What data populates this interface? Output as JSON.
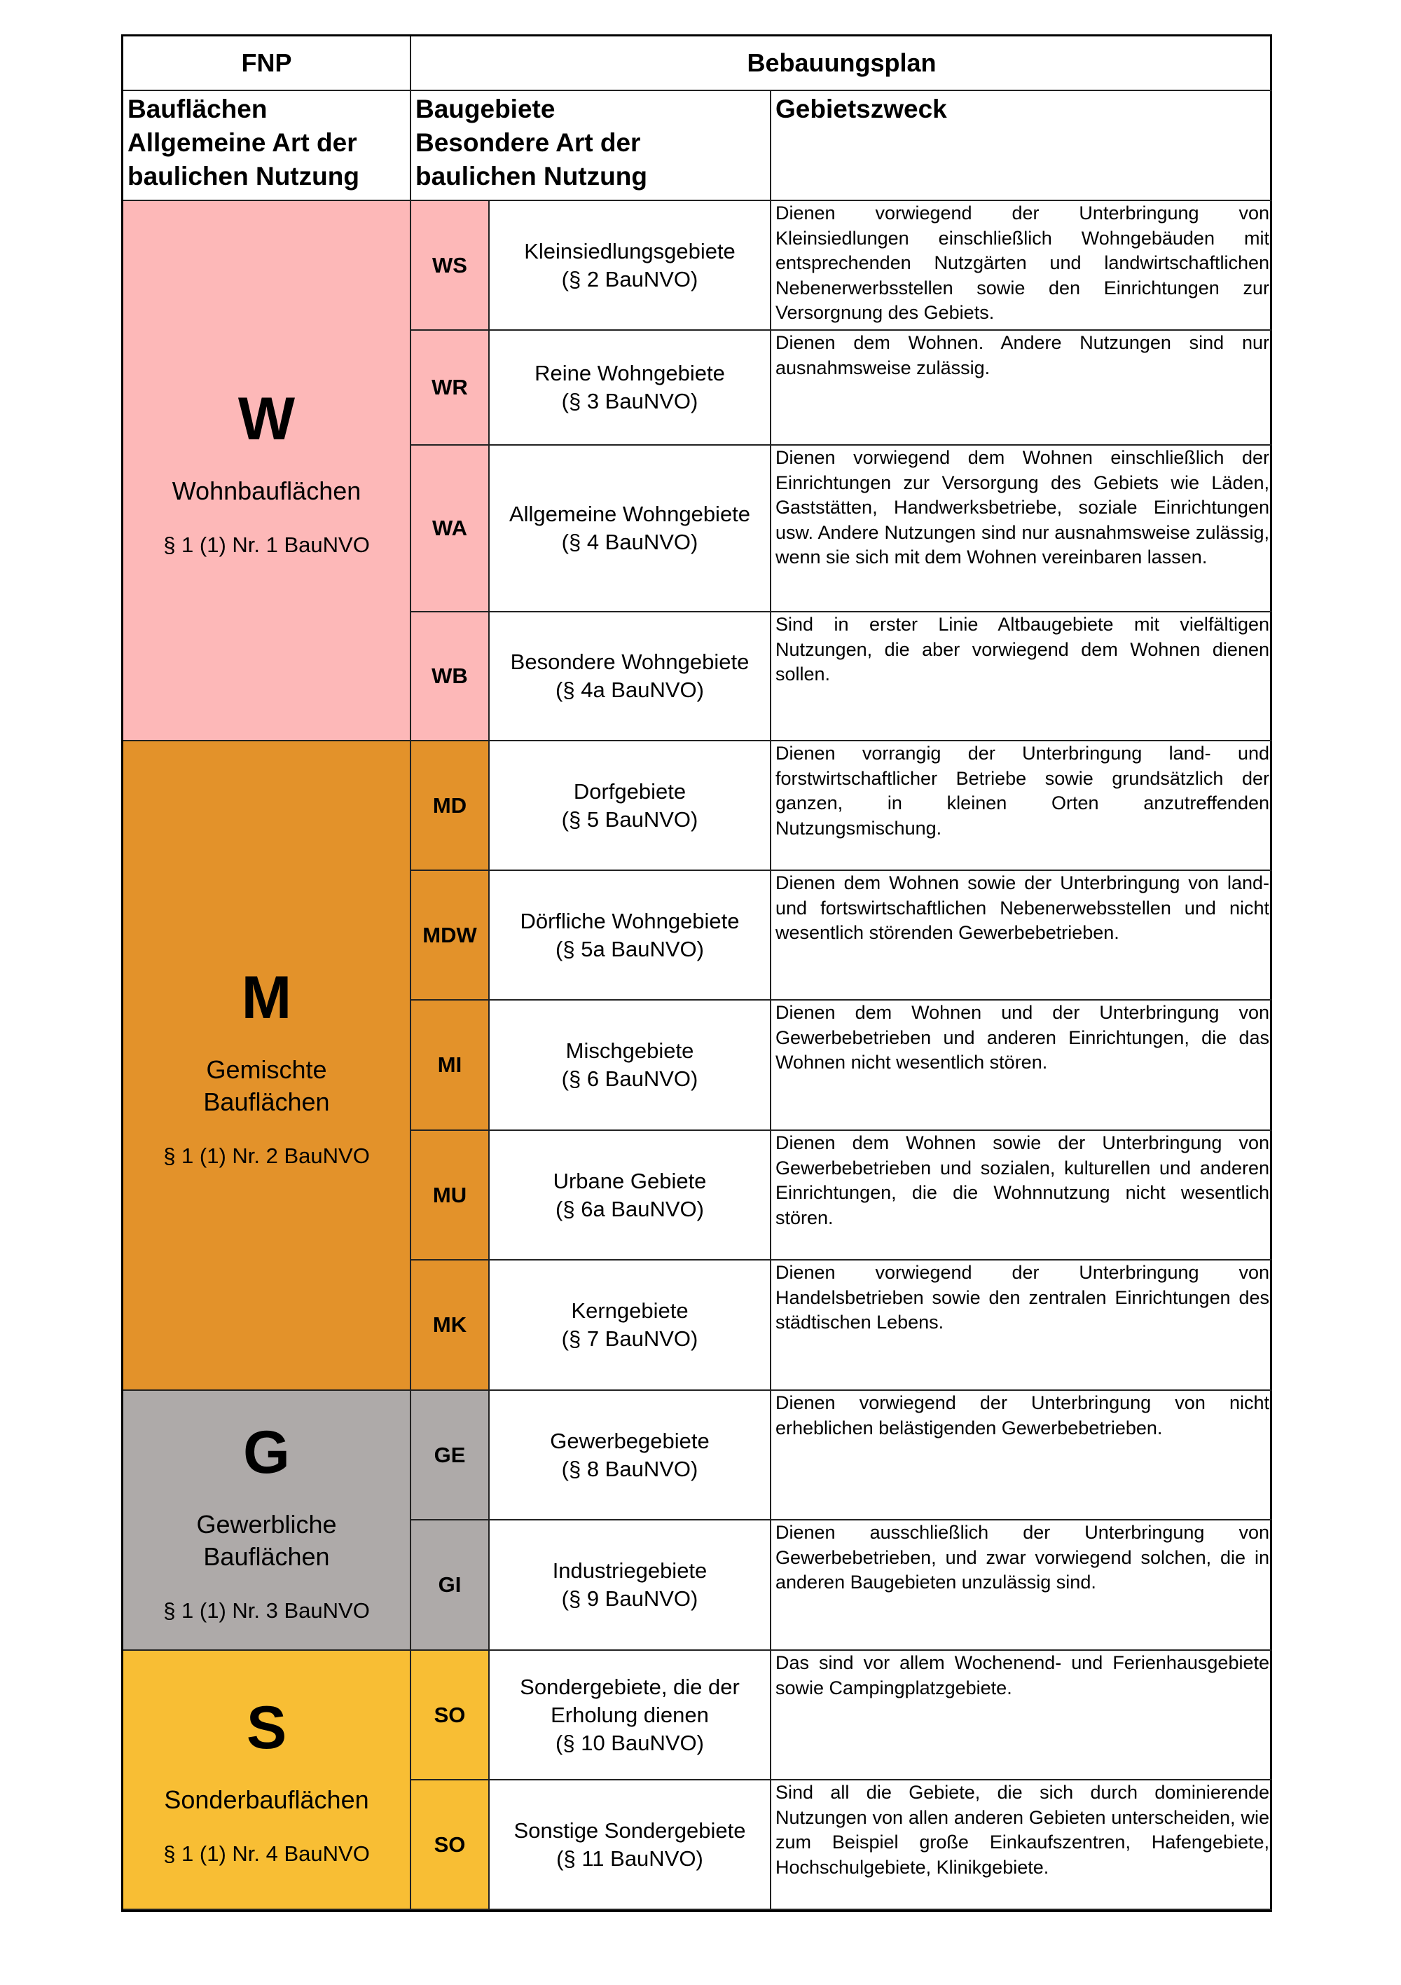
{
  "header": {
    "fnp": "FNP",
    "bebauungsplan": "Bebauungsplan"
  },
  "subheader": {
    "bauflaechen": "Bauflächen\nAllgemeine Art der\nbaulichen Nutzung",
    "baugebiete": "Baugebiete\nBesondere Art der\nbaulichen Nutzung",
    "gebietszweck": "Gebietszweck"
  },
  "colors": {
    "W": "#fdb8b8",
    "M": "#e3922a",
    "G": "#aeaaa9",
    "S": "#f8be34"
  },
  "groups": [
    {
      "letter": "W",
      "name": "Wohnbauflächen",
      "ref": "§ 1 (1) Nr. 1 BauNVO"
    },
    {
      "letter": "M",
      "name": "Gemischte\nBauflächen",
      "ref": "§ 1 (1) Nr. 2 BauNVO"
    },
    {
      "letter": "G",
      "name": "Gewerbliche\nBauflächen",
      "ref": "§ 1 (1) Nr. 3 BauNVO"
    },
    {
      "letter": "S",
      "name": "Sonderbauflächen",
      "ref": "§ 1 (1) Nr. 4 BauNVO"
    }
  ],
  "rows": [
    {
      "code": "WS",
      "name": "Kleinsiedlungsgebiete",
      "ref": "(§ 2 BauNVO)",
      "desc": "Dienen vorwiegend der Unterbringung von Kleinsiedlungen einschließlich Wohngebäuden mit entsprechenden Nutzgärten und landwirtschaftlichen Nebenerwerbsstellen sowie den Einrichtungen zur Versorgnung des Gebiets."
    },
    {
      "code": "WR",
      "name": "Reine Wohngebiete",
      "ref": "(§ 3 BauNVO)",
      "desc": "Dienen dem Wohnen. Andere Nutzungen sind nur ausnahmsweise zulässig."
    },
    {
      "code": "WA",
      "name": "Allgemeine Wohngebiete",
      "ref": "(§ 4 BauNVO)",
      "desc": "Dienen vorwiegend dem Wohnen einschließlich der Einrichtungen zur Versorgung des Gebiets wie Läden, Gaststätten, Handwerksbetriebe, soziale Einrichtungen usw. Andere Nutzungen sind nur ausnahmsweise zulässig, wenn sie sich mit dem Wohnen vereinbaren lassen."
    },
    {
      "code": "WB",
      "name": "Besondere Wohngebiete",
      "ref": "(§ 4a BauNVO)",
      "desc": "Sind in erster Linie Altbaugebiete mit vielfältigen Nutzungen, die aber vorwiegend dem Wohnen dienen sollen."
    },
    {
      "code": "MD",
      "name": "Dorfgebiete",
      "ref": "(§ 5 BauNVO)",
      "desc": "Dienen vorrangig der Unterbringung land- und forstwirtschaftlicher Betriebe sowie grundsätzlich der ganzen, in kleinen Orten anzutreffenden Nutzungsmischung."
    },
    {
      "code": "MDW",
      "name": "Dörfliche Wohngebiete",
      "ref": "(§ 5a BauNVO)",
      "desc": "Dienen dem Wohnen sowie der Unterbringung von land- und fortswirtschaftlichen Nebenerwebsstellen und nicht wesentlich störenden Gewerbebetrieben."
    },
    {
      "code": "MI",
      "name": "Mischgebiete",
      "ref": "(§ 6 BauNVO)",
      "desc": "Dienen dem Wohnen und der Unterbringung von Gewerbebetrieben und anderen Einrichtungen, die das Wohnen nicht wesentlich stören."
    },
    {
      "code": "MU",
      "name": "Urbane Gebiete",
      "ref": "(§ 6a BauNVO)",
      "desc": "Dienen dem Wohnen sowie der Unterbringung von Gewerbebetrieben und sozialen, kulturellen und anderen Einrichtungen, die die Wohnnutzung nicht wesentlich stören."
    },
    {
      "code": "MK",
      "name": "Kerngebiete",
      "ref": "(§ 7 BauNVO)",
      "desc": "Dienen vorwiegend der Unterbringung von Handelsbetrieben sowie den zentralen Einrichtungen des städtischen Lebens."
    },
    {
      "code": "GE",
      "name": "Gewerbegebiete",
      "ref": "(§ 8 BauNVO)",
      "desc": "Dienen vorwiegend der Unterbringung von nicht erheblichen belästigenden Gewerbebetrieben."
    },
    {
      "code": "GI",
      "name": "Industriegebiete",
      "ref": "(§ 9 BauNVO)",
      "desc": "Dienen ausschließlich der Unterbringung von Gewerbebetrieben, und zwar vorwiegend solchen, die in anderen Baugebieten unzulässig sind."
    },
    {
      "code": "SO",
      "name": "Sondergebiete, die der Erholung dienen",
      "ref": "(§ 10 BauNVO)",
      "desc": "Das sind vor allem Wochenend- und Ferienhausgebiete sowie Campingplatzgebiete."
    },
    {
      "code": "SO",
      "name": "Sonstige Sondergebiete",
      "ref": "(§ 11 BauNVO)",
      "desc": "Sind all die Gebiete, die sich durch dominierende Nutzungen von allen anderen Gebieten unterscheiden, wie zum Beispiel große Einkaufszentren, Hafengebiete, Hochschulgebiete, Klinikgebiete."
    }
  ]
}
